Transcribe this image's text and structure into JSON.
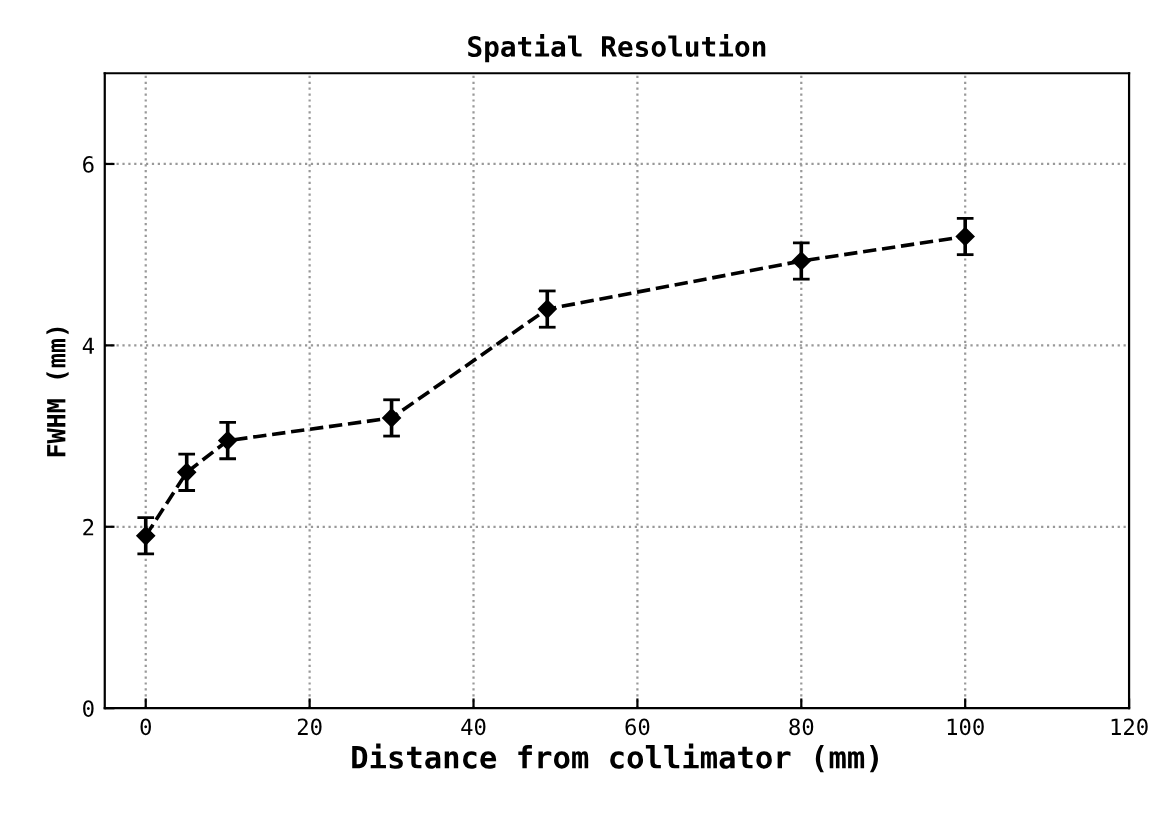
{
  "chart_data": {
    "type": "line",
    "title": "Spatial Resolution",
    "xlabel": "Distance from collimator (mm)",
    "ylabel": "FWHM (mm)",
    "x": [
      0,
      5,
      10,
      30,
      49,
      80,
      100
    ],
    "series": [
      {
        "color": "#000000",
        "values": [
          1.9,
          2.6,
          2.95,
          3.2,
          4.4,
          4.93,
          5.2
        ],
        "errors": [
          0.2,
          0.2,
          0.2,
          0.2,
          0.2,
          0.2,
          0.2
        ]
      }
    ],
    "xlim": [
      -5,
      120
    ],
    "xticks": [
      0,
      20,
      40,
      60,
      80,
      100,
      120
    ],
    "ylim": [
      0,
      7
    ],
    "yticks": [
      0,
      2,
      4,
      6
    ],
    "grid": true,
    "marker": "diamond",
    "line_style": "dashed",
    "legend": false
  }
}
